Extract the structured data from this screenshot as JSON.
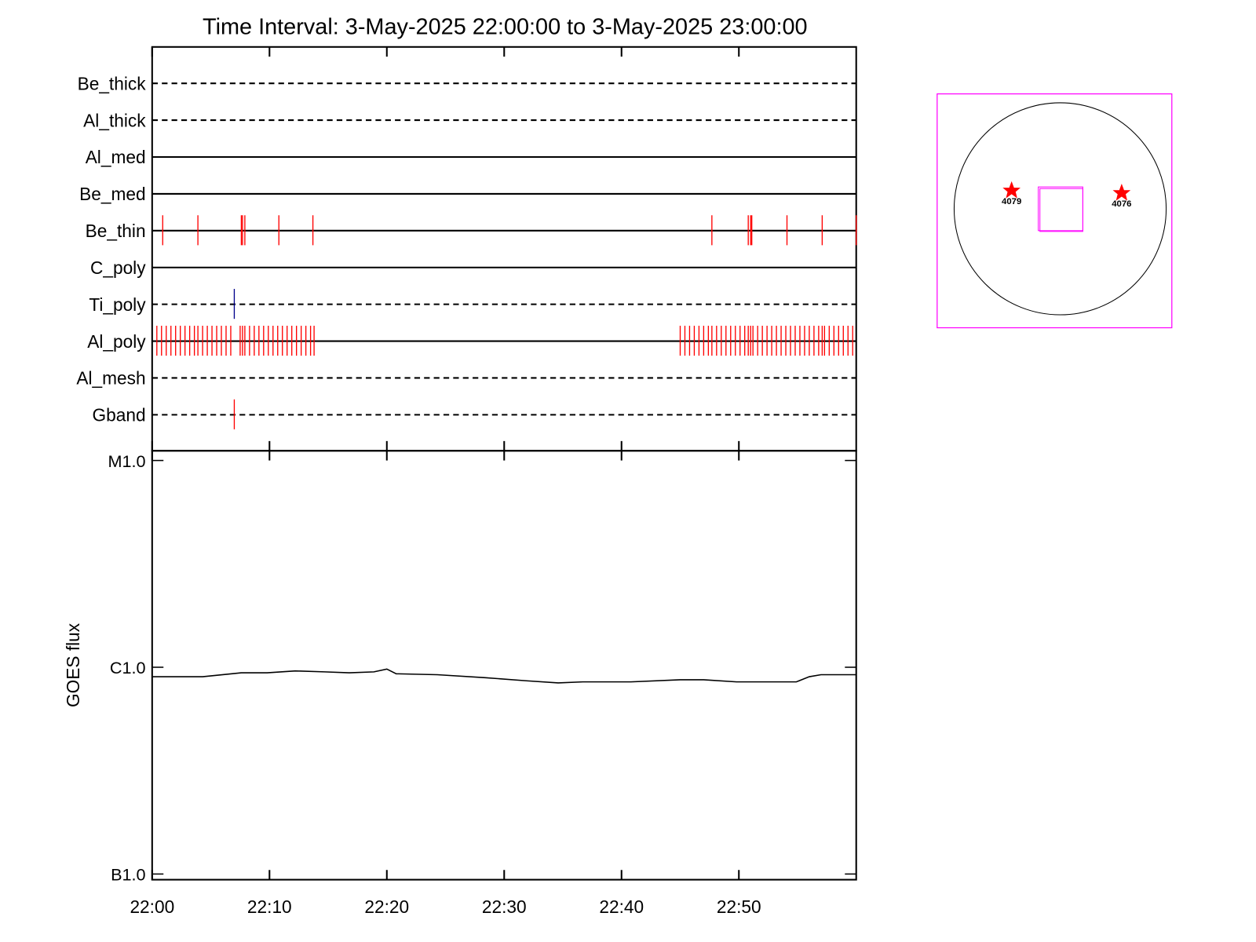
{
  "chart_data": [
    {
      "type": "timeline",
      "title": "Time Interval:  3-May-2025 22:00:00 to  3-May-2025 23:00:00",
      "xlim": [
        0,
        60
      ],
      "xticks": [
        {
          "value": 0,
          "label": "22:00"
        },
        {
          "value": 10,
          "label": "22:10"
        },
        {
          "value": 20,
          "label": "22:20"
        },
        {
          "value": 30,
          "label": "22:30"
        },
        {
          "value": 40,
          "label": "22:40"
        },
        {
          "value": 50,
          "label": "22:50"
        }
      ],
      "series": [
        {
          "name": "Be_thick",
          "dashed": true,
          "color": "#ff0000",
          "values": []
        },
        {
          "name": "Al_thick",
          "dashed": true,
          "color": "#ff0000",
          "values": []
        },
        {
          "name": "Al_med",
          "dashed": false,
          "color": "#ff0000",
          "values": []
        },
        {
          "name": "Be_med",
          "dashed": false,
          "color": "#ff0000",
          "values": []
        },
        {
          "name": "Be_thin",
          "dashed": false,
          "color": "#ff0000",
          "values": [
            0.9,
            3.9,
            7.6,
            7.7,
            7.9,
            10.8,
            13.7,
            47.7,
            50.8,
            51.0,
            51.1,
            54.1,
            57.1,
            60.0
          ]
        },
        {
          "name": "C_poly",
          "dashed": false,
          "color": "#ff0000",
          "values": []
        },
        {
          "name": "Ti_poly",
          "dashed": true,
          "color": "#00008b",
          "values": [
            7.0
          ]
        },
        {
          "name": "Al_poly",
          "dashed": false,
          "color": "#ff0000",
          "values": [
            0.4,
            0.8,
            1.2,
            1.6,
            2.0,
            2.4,
            2.8,
            3.2,
            3.6,
            3.9,
            4.3,
            4.7,
            5.1,
            5.5,
            5.9,
            6.3,
            6.7,
            7.5,
            7.7,
            7.9,
            8.3,
            8.7,
            9.1,
            9.5,
            9.9,
            10.3,
            10.7,
            11.1,
            11.5,
            11.9,
            12.3,
            12.7,
            13.1,
            13.5,
            13.8,
            45.0,
            45.4,
            45.8,
            46.2,
            46.6,
            47.0,
            47.4,
            47.7,
            48.1,
            48.5,
            48.9,
            49.3,
            49.7,
            50.1,
            50.5,
            50.8,
            51.0,
            51.2,
            51.6,
            52.0,
            52.4,
            52.8,
            53.2,
            53.6,
            54.0,
            54.4,
            54.8,
            55.2,
            55.6,
            56.0,
            56.4,
            56.8,
            57.1,
            57.3,
            57.7,
            58.1,
            58.5,
            58.9,
            59.3,
            59.7
          ]
        },
        {
          "name": "Al_mesh",
          "dashed": true,
          "color": "#ff0000",
          "values": []
        },
        {
          "name": "Gband",
          "dashed": true,
          "color": "#ff0000",
          "values": [
            7.0
          ]
        }
      ]
    },
    {
      "type": "line",
      "ylabel": "GOES flux",
      "ylog": true,
      "ylim": [
        1e-07,
        1e-05
      ],
      "yticks": [
        {
          "value": 1e-07,
          "label": "B1.0"
        },
        {
          "value": 1e-06,
          "label": "C1.0"
        },
        {
          "value": 1e-05,
          "label": "M1.0"
        }
      ],
      "xlim": [
        0,
        60
      ],
      "x": [
        0,
        4.3,
        7.6,
        9.8,
        12.2,
        14.7,
        16.8,
        18.9,
        20.0,
        20.8,
        24.3,
        28.4,
        31.9,
        34.6,
        36.7,
        40.8,
        45.0,
        47.0,
        49.8,
        54.9,
        56.0,
        57.0,
        60.0
      ],
      "values": [
        9e-07,
        9e-07,
        9.4e-07,
        9.4e-07,
        9.6e-07,
        9.5e-07,
        9.4e-07,
        9.5e-07,
        9.8e-07,
        9.3e-07,
        9.2e-07,
        8.9e-07,
        8.6e-07,
        8.4e-07,
        8.5e-07,
        8.5e-07,
        8.7e-07,
        8.7e-07,
        8.5e-07,
        8.5e-07,
        9e-07,
        9.2e-07,
        9.2e-07
      ],
      "color": "#000000"
    }
  ],
  "sun_map": {
    "regions": [
      {
        "label": "4079"
      },
      {
        "label": "4076"
      }
    ]
  }
}
